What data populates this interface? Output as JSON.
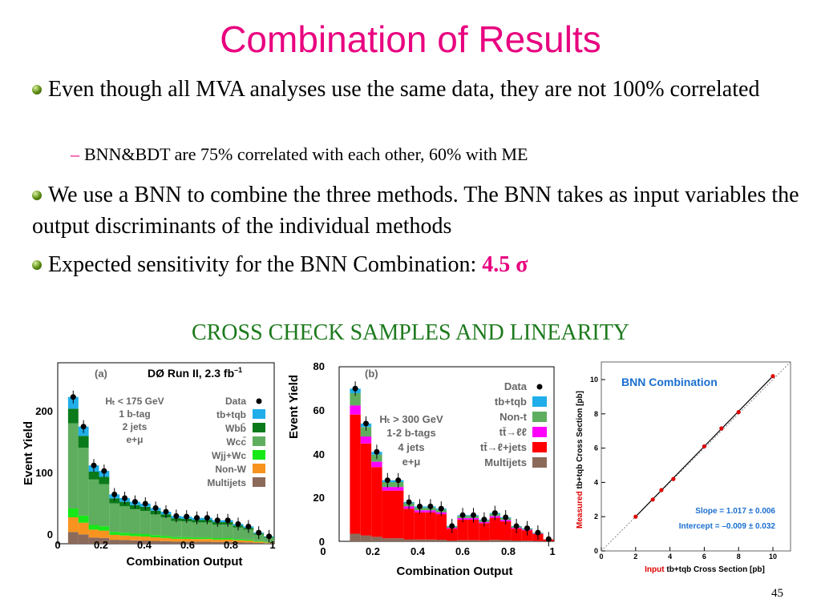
{
  "title": "Combination of Results",
  "bullets": [
    {
      "text": "Even though all MVA analyses use the same data, they are not 100% correlated"
    },
    {
      "sub": "BNN&BDT are 75% correlated with each other,  60% with ME"
    },
    {
      "text": "We use a BNN to combine the three methods. The BNN takes as input variables the output discriminants of the individual methods"
    },
    {
      "text": "Expected sensitivity for the BNN Combination: ",
      "value": "4.5 σ"
    }
  ],
  "section_title": "CROSS CHECK SAMPLES AND LINEARITY",
  "page_number": "45",
  "colors": {
    "title": "#e8007f",
    "section": "#1d7a1d"
  },
  "plot_a": {
    "tag": "(a)",
    "header": "DØ Run II,  2.3 fb",
    "header_sup": "–1",
    "ylabel": "Event Yield",
    "xlabel": "Combination Output",
    "yticks": [
      "0",
      "100",
      "200"
    ],
    "xticks": [
      "0",
      "0.2",
      "0.4",
      "0.6",
      "0.8",
      "1"
    ],
    "cuts": [
      "Hₜ < 175 GeV",
      "1 b-tag",
      "2 jets",
      "e+μ"
    ],
    "legend": [
      "Data",
      "tb+tqb",
      "Wbb̄",
      "Wcc̄",
      "Wjj+Wc",
      "Non-W",
      "Multijets"
    ],
    "legend_colors": [
      "#000000",
      "#1faee9",
      "#0b7a1a",
      "#5fae5f",
      "#17e817",
      "#f7931e",
      "#8c6a5a"
    ],
    "data": [
      238,
      190,
      127,
      118,
      80,
      74,
      68,
      65,
      58,
      52,
      45,
      44,
      42,
      42,
      38,
      38,
      32,
      28,
      18,
      12
    ]
  },
  "plot_b": {
    "tag": "(b)",
    "ylabel": "Event Yield",
    "xlabel": "Combination Output",
    "yticks": [
      "0",
      "20",
      "40",
      "60",
      "80"
    ],
    "xticks": [
      "0",
      "0.2",
      "0.4",
      "0.6",
      "0.8",
      "1"
    ],
    "cuts": [
      "Hₜ > 300 GeV",
      "1-2 b-tags",
      "4 jets",
      "e+μ"
    ],
    "legend": [
      "Data",
      "tb+tqb",
      "Non-t",
      "tt̄→ℓℓ",
      "tt̄→ℓ+jets",
      "Multijets"
    ],
    "legend_colors": [
      "#000000",
      "#1faee9",
      "#5fae5f",
      "#ff00ff",
      "#ff0000",
      "#8c6a5a"
    ],
    "data": [
      70,
      54,
      41,
      28,
      28,
      18,
      16,
      16,
      15,
      7,
      12,
      12,
      10,
      13,
      11,
      7,
      6,
      4,
      1
    ]
  },
  "plot_c": {
    "title": "BNN Combination",
    "ylabel_red": "Measured",
    "ylabel_rest": "tb+tqb Cross Section [pb]",
    "xlabel_red": "Input",
    "xlabel_rest": "tb+tqb Cross Section [pb]",
    "slope": "Slope = 1.017 ± 0.006",
    "intercept": "Intercept = –0.009 ± 0.032",
    "xticks": [
      "0",
      "2",
      "4",
      "6",
      "8",
      "10"
    ],
    "yticks": [
      "0",
      "2",
      "4",
      "6",
      "8",
      "10"
    ],
    "points": [
      [
        2,
        2.0
      ],
      [
        3,
        3.0
      ],
      [
        3.5,
        3.55
      ],
      [
        4.2,
        4.2
      ],
      [
        6,
        6.1
      ],
      [
        7,
        7.15
      ],
      [
        8,
        8.1
      ],
      [
        10,
        10.2
      ]
    ]
  }
}
